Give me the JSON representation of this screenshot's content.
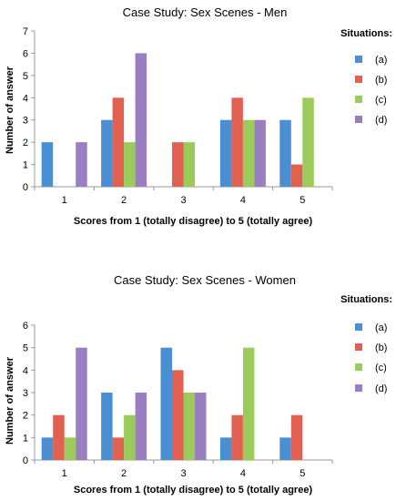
{
  "colors": {
    "a": "#4a8fd4",
    "b": "#e0614f",
    "c": "#9bcb5a",
    "d": "#9a7ec2"
  },
  "chart_data": [
    {
      "type": "bar",
      "title": "Case Study: Sex Scenes - Men",
      "xlabel": "Scores from 1 (totally disagree) to 5 (totally agree)",
      "ylabel": "Number of answer",
      "ylim": [
        0,
        7
      ],
      "yticks": [
        "0",
        "1",
        "2",
        "3",
        "4",
        "5",
        "6",
        "7"
      ],
      "categories": [
        "1",
        "2",
        "3",
        "4",
        "5"
      ],
      "legend_title": "Situations:",
      "legend_position": "right",
      "grid": false,
      "series": [
        {
          "name": "(a)",
          "values": [
            2,
            3,
            0,
            3,
            3
          ]
        },
        {
          "name": "(b)",
          "values": [
            0,
            4,
            2,
            4,
            1
          ]
        },
        {
          "name": "(c)",
          "values": [
            0,
            2,
            2,
            3,
            4
          ]
        },
        {
          "name": "(d)",
          "values": [
            2,
            6,
            0,
            3,
            0
          ]
        }
      ]
    },
    {
      "type": "bar",
      "title": "Case Study: Sex Scenes - Women",
      "xlabel": "Scores from 1 (totally disagree) to 5 (totally agree)",
      "ylabel": "Number of answer",
      "ylim": [
        0,
        6
      ],
      "yticks": [
        "0",
        "1",
        "2",
        "3",
        "4",
        "5",
        "6"
      ],
      "categories": [
        "1",
        "2",
        "3",
        "4",
        "5"
      ],
      "legend_title": "Situations:",
      "legend_position": "right",
      "grid": false,
      "series": [
        {
          "name": "(a)",
          "values": [
            1,
            3,
            5,
            1,
            1
          ]
        },
        {
          "name": "(b)",
          "values": [
            2,
            1,
            4,
            2,
            2
          ]
        },
        {
          "name": "(c)",
          "values": [
            1,
            2,
            3,
            5,
            0
          ]
        },
        {
          "name": "(d)",
          "values": [
            5,
            3,
            3,
            0,
            0
          ]
        }
      ]
    }
  ]
}
